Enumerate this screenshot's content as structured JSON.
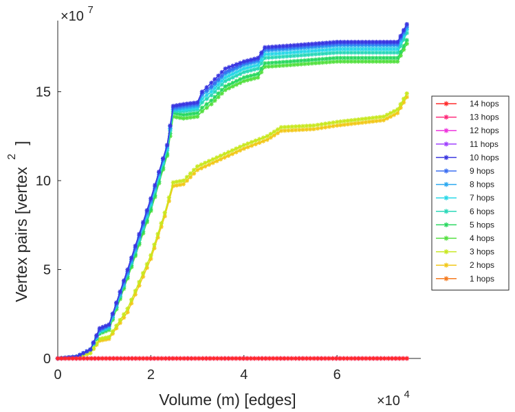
{
  "chart_data": {
    "type": "line",
    "xlabel": "Volume (m) [edges]",
    "ylabel_main": "Vertex pairs [vertex",
    "ylabel_sup": "2",
    "ylabel_close": "]",
    "x_exponent_prefix": "×10",
    "x_exponent": "4",
    "y_exponent_prefix": "×10",
    "y_exponent": "7",
    "xlim": [
      0,
      7.8
    ],
    "ylim": [
      0,
      19
    ],
    "x_ticks": [
      0,
      2,
      4,
      6
    ],
    "x_tick_labels": [
      "0",
      "2",
      "4",
      "6"
    ],
    "y_ticks": [
      0,
      5,
      10,
      15
    ],
    "y_tick_labels": [
      "0",
      "5",
      "10",
      "15"
    ],
    "legend_position": "right",
    "series": [
      {
        "name": "14 hops",
        "color": "#ff2a2a",
        "marker": "star",
        "points": [
          [
            0,
            0
          ],
          [
            7.5,
            0
          ]
        ]
      },
      {
        "name": "13 hops",
        "color": "#ff2a7a",
        "marker": "star",
        "points": [
          [
            0,
            0
          ],
          [
            7.5,
            0
          ]
        ]
      },
      {
        "name": "12 hops",
        "color": "#ee33dd",
        "marker": "star",
        "points": [
          [
            0,
            0
          ],
          [
            7.5,
            0
          ]
        ]
      },
      {
        "name": "11 hops",
        "color": "#a040ff",
        "marker": "star",
        "points": [
          [
            0,
            0
          ],
          [
            7.5,
            0
          ]
        ]
      },
      {
        "name": "10 hops",
        "color": "#3a36e0",
        "marker": "star",
        "points": [
          [
            0,
            0
          ],
          [
            0.4,
            0.1
          ],
          [
            0.7,
            0.5
          ],
          [
            0.9,
            1.7
          ],
          [
            1.1,
            1.9
          ],
          [
            1.5,
            5.0
          ],
          [
            2.0,
            9.0
          ],
          [
            2.35,
            12.0
          ],
          [
            2.48,
            14.2
          ],
          [
            2.7,
            14.3
          ],
          [
            3.0,
            14.4
          ],
          [
            3.1,
            15.0
          ],
          [
            3.3,
            15.5
          ],
          [
            3.6,
            16.3
          ],
          [
            4.0,
            16.7
          ],
          [
            4.3,
            16.9
          ],
          [
            4.45,
            17.5
          ],
          [
            5.0,
            17.6
          ],
          [
            6.0,
            17.8
          ],
          [
            7.0,
            17.8
          ],
          [
            7.3,
            17.8
          ],
          [
            7.5,
            18.8
          ]
        ]
      },
      {
        "name": "9 hops",
        "color": "#3a6ef2",
        "marker": "star",
        "points": [
          [
            0,
            0
          ],
          [
            0.4,
            0.1
          ],
          [
            0.7,
            0.5
          ],
          [
            0.9,
            1.6
          ],
          [
            1.1,
            1.9
          ],
          [
            1.5,
            4.9
          ],
          [
            2.0,
            8.9
          ],
          [
            2.35,
            12.0
          ],
          [
            2.48,
            14.1
          ],
          [
            2.7,
            14.2
          ],
          [
            3.0,
            14.3
          ],
          [
            3.1,
            14.9
          ],
          [
            3.3,
            15.3
          ],
          [
            3.6,
            16.1
          ],
          [
            4.0,
            16.6
          ],
          [
            4.3,
            16.8
          ],
          [
            4.45,
            17.4
          ],
          [
            5.0,
            17.5
          ],
          [
            6.0,
            17.7
          ],
          [
            7.0,
            17.7
          ],
          [
            7.3,
            17.7
          ],
          [
            7.5,
            18.7
          ]
        ]
      },
      {
        "name": "8 hops",
        "color": "#2aa8f0",
        "marker": "star",
        "points": [
          [
            0,
            0
          ],
          [
            0.4,
            0.1
          ],
          [
            0.7,
            0.5
          ],
          [
            0.9,
            1.6
          ],
          [
            1.1,
            1.8
          ],
          [
            1.5,
            4.8
          ],
          [
            2.0,
            8.8
          ],
          [
            2.35,
            11.9
          ],
          [
            2.48,
            14.0
          ],
          [
            2.7,
            14.1
          ],
          [
            3.0,
            14.2
          ],
          [
            3.1,
            14.8
          ],
          [
            3.3,
            15.2
          ],
          [
            3.6,
            16.0
          ],
          [
            4.0,
            16.5
          ],
          [
            4.3,
            16.7
          ],
          [
            4.45,
            17.3
          ],
          [
            5.0,
            17.4
          ],
          [
            6.0,
            17.6
          ],
          [
            7.0,
            17.6
          ],
          [
            7.3,
            17.6
          ],
          [
            7.5,
            18.6
          ]
        ]
      },
      {
        "name": "7 hops",
        "color": "#2ad8e8",
        "marker": "star",
        "points": [
          [
            0,
            0
          ],
          [
            0.4,
            0.1
          ],
          [
            0.7,
            0.5
          ],
          [
            0.9,
            1.5
          ],
          [
            1.1,
            1.8
          ],
          [
            1.5,
            4.8
          ],
          [
            2.0,
            8.7
          ],
          [
            2.35,
            11.8
          ],
          [
            2.48,
            14.0
          ],
          [
            2.7,
            14.0
          ],
          [
            3.0,
            14.1
          ],
          [
            3.1,
            14.6
          ],
          [
            3.3,
            15.0
          ],
          [
            3.6,
            15.8
          ],
          [
            4.0,
            16.3
          ],
          [
            4.3,
            16.5
          ],
          [
            4.45,
            17.1
          ],
          [
            5.0,
            17.2
          ],
          [
            6.0,
            17.4
          ],
          [
            7.0,
            17.4
          ],
          [
            7.3,
            17.4
          ],
          [
            7.5,
            18.5
          ]
        ]
      },
      {
        "name": "6 hops",
        "color": "#2ad8b8",
        "marker": "star",
        "points": [
          [
            0,
            0
          ],
          [
            0.4,
            0.1
          ],
          [
            0.7,
            0.5
          ],
          [
            0.9,
            1.5
          ],
          [
            1.1,
            1.7
          ],
          [
            1.5,
            4.7
          ],
          [
            2.0,
            8.6
          ],
          [
            2.35,
            11.7
          ],
          [
            2.48,
            13.9
          ],
          [
            2.7,
            13.9
          ],
          [
            3.0,
            14.0
          ],
          [
            3.1,
            14.4
          ],
          [
            3.3,
            14.8
          ],
          [
            3.6,
            15.6
          ],
          [
            4.0,
            16.1
          ],
          [
            4.3,
            16.3
          ],
          [
            4.45,
            16.9
          ],
          [
            5.0,
            17.0
          ],
          [
            6.0,
            17.2
          ],
          [
            7.0,
            17.2
          ],
          [
            7.3,
            17.2
          ],
          [
            7.5,
            18.3
          ]
        ]
      },
      {
        "name": "5 hops",
        "color": "#2ad860",
        "marker": "star",
        "points": [
          [
            0,
            0
          ],
          [
            0.4,
            0.1
          ],
          [
            0.7,
            0.5
          ],
          [
            0.9,
            1.4
          ],
          [
            1.1,
            1.7
          ],
          [
            1.5,
            4.6
          ],
          [
            2.0,
            8.4
          ],
          [
            2.35,
            11.5
          ],
          [
            2.48,
            13.8
          ],
          [
            2.7,
            13.7
          ],
          [
            3.0,
            13.8
          ],
          [
            3.1,
            14.1
          ],
          [
            3.3,
            14.5
          ],
          [
            3.6,
            15.3
          ],
          [
            4.0,
            15.8
          ],
          [
            4.3,
            16.0
          ],
          [
            4.45,
            16.6
          ],
          [
            5.0,
            16.7
          ],
          [
            6.0,
            16.9
          ],
          [
            7.0,
            16.9
          ],
          [
            7.3,
            16.9
          ],
          [
            7.5,
            17.9
          ]
        ]
      },
      {
        "name": "4 hops",
        "color": "#55e040",
        "marker": "star",
        "points": [
          [
            0,
            0
          ],
          [
            0.4,
            0.1
          ],
          [
            0.7,
            0.5
          ],
          [
            0.9,
            1.4
          ],
          [
            1.1,
            1.6
          ],
          [
            1.5,
            4.5
          ],
          [
            2.0,
            8.3
          ],
          [
            2.35,
            11.4
          ],
          [
            2.48,
            13.6
          ],
          [
            2.7,
            13.5
          ],
          [
            3.0,
            13.6
          ],
          [
            3.1,
            13.9
          ],
          [
            3.3,
            14.3
          ],
          [
            3.6,
            15.1
          ],
          [
            4.0,
            15.6
          ],
          [
            4.3,
            15.8
          ],
          [
            4.45,
            16.4
          ],
          [
            5.0,
            16.5
          ],
          [
            6.0,
            16.7
          ],
          [
            7.0,
            16.7
          ],
          [
            7.3,
            16.7
          ],
          [
            7.5,
            17.7
          ]
        ]
      },
      {
        "name": "3 hops",
        "color": "#c8e820",
        "marker": "star",
        "points": [
          [
            0,
            0
          ],
          [
            0.4,
            0.1
          ],
          [
            0.7,
            0.3
          ],
          [
            0.9,
            1.1
          ],
          [
            1.1,
            1.2
          ],
          [
            1.5,
            2.8
          ],
          [
            2.0,
            5.8
          ],
          [
            2.3,
            8.2
          ],
          [
            2.48,
            9.9
          ],
          [
            2.7,
            10.0
          ],
          [
            3.0,
            10.8
          ],
          [
            3.5,
            11.4
          ],
          [
            4.0,
            12.0
          ],
          [
            4.5,
            12.5
          ],
          [
            4.8,
            13.0
          ],
          [
            5.5,
            13.1
          ],
          [
            6.0,
            13.3
          ],
          [
            7.0,
            13.6
          ],
          [
            7.3,
            14.0
          ],
          [
            7.5,
            14.9
          ]
        ]
      },
      {
        "name": "2 hops",
        "color": "#f2c81a",
        "marker": "star",
        "points": [
          [
            0,
            0
          ],
          [
            0.4,
            0.1
          ],
          [
            0.7,
            0.3
          ],
          [
            0.9,
            1.0
          ],
          [
            1.1,
            1.1
          ],
          [
            1.5,
            2.6
          ],
          [
            2.0,
            5.6
          ],
          [
            2.3,
            8.0
          ],
          [
            2.48,
            9.7
          ],
          [
            2.7,
            9.8
          ],
          [
            3.0,
            10.6
          ],
          [
            3.5,
            11.2
          ],
          [
            4.0,
            11.8
          ],
          [
            4.5,
            12.3
          ],
          [
            4.8,
            12.8
          ],
          [
            5.5,
            12.9
          ],
          [
            6.0,
            13.1
          ],
          [
            7.0,
            13.4
          ],
          [
            7.3,
            13.8
          ],
          [
            7.5,
            14.7
          ]
        ]
      },
      {
        "name": "1 hops",
        "color": "#f57a1e",
        "marker": "star",
        "points": [
          [
            0,
            0
          ],
          [
            7.5,
            0
          ]
        ]
      }
    ]
  }
}
